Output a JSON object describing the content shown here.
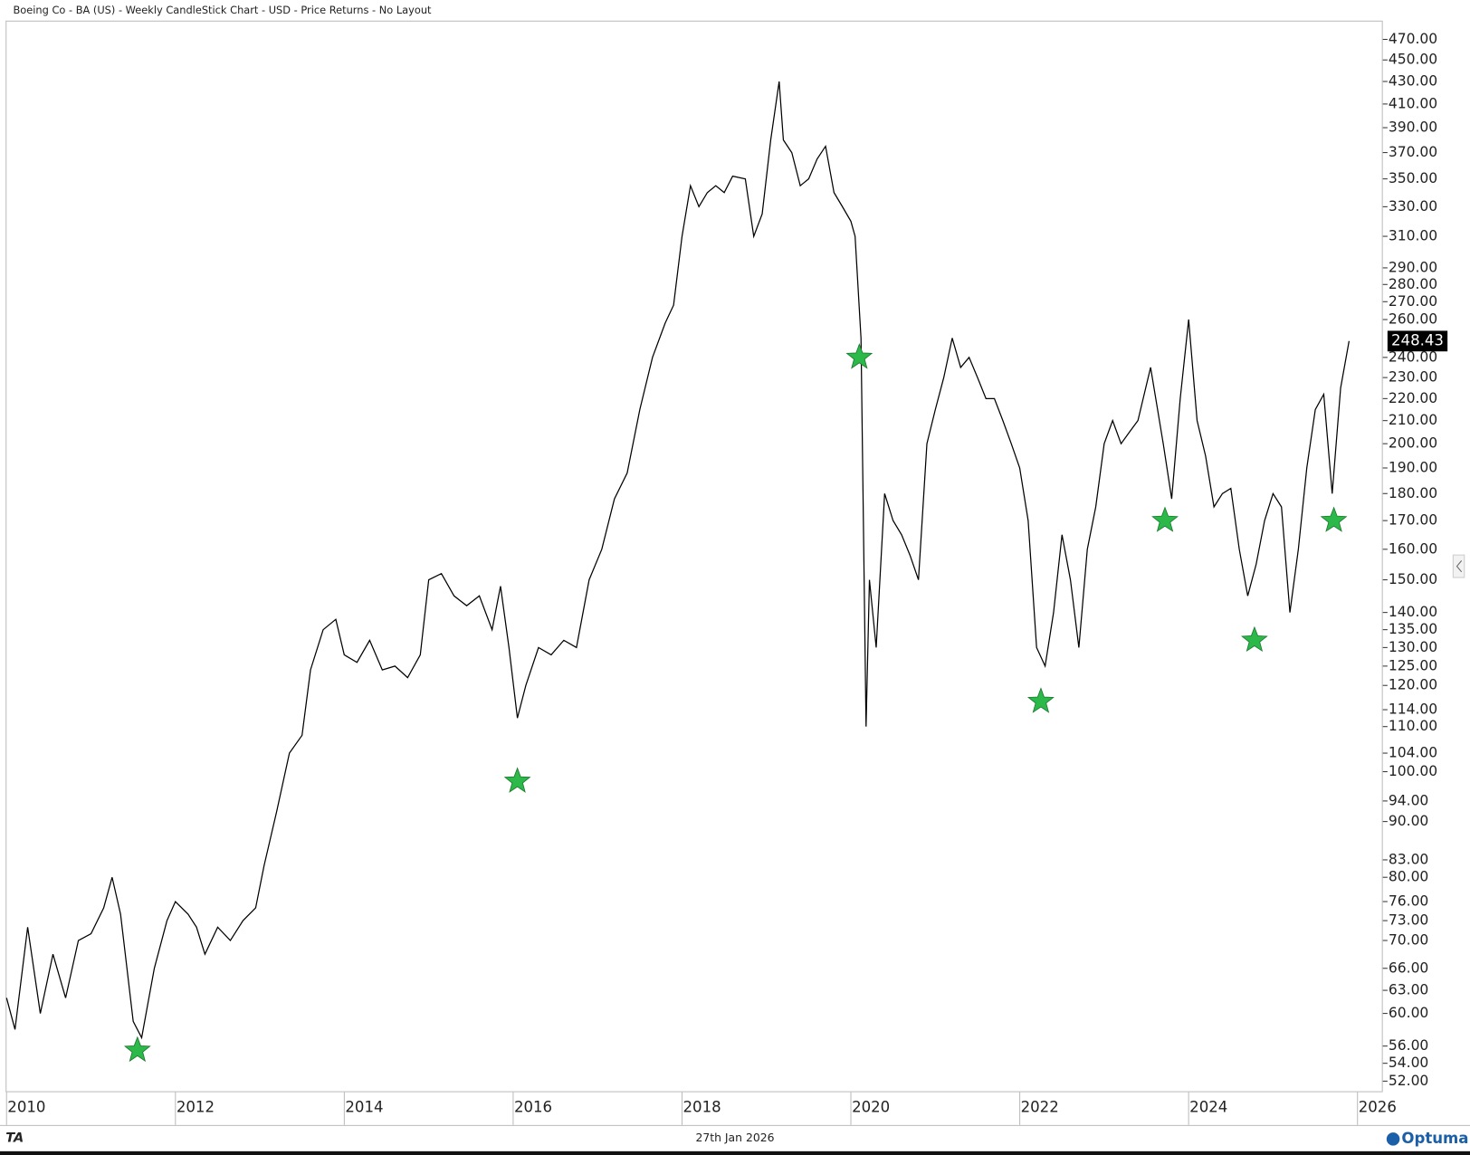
{
  "chart_data": {
    "type": "line",
    "title": "Boeing Co - BA (US) - Weekly CandleStick Chart - USD - Price Returns - No Layout",
    "date_label": "27th Jan 2026",
    "brand": "Optuma",
    "logo": "TA",
    "log_scale": true,
    "color": "#000000",
    "x": [
      2010.0,
      2010.1,
      2010.25,
      2010.4,
      2010.55,
      2010.7,
      2010.85,
      2011.0,
      2011.15,
      2011.25,
      2011.35,
      2011.5,
      2011.6,
      2011.75,
      2011.9,
      2012.0,
      2012.15,
      2012.25,
      2012.35,
      2012.5,
      2012.65,
      2012.8,
      2012.95,
      2013.05,
      2013.2,
      2013.35,
      2013.5,
      2013.6,
      2013.75,
      2013.9,
      2014.0,
      2014.15,
      2014.3,
      2014.45,
      2014.6,
      2014.75,
      2014.9,
      2015.0,
      2015.15,
      2015.3,
      2015.45,
      2015.6,
      2015.75,
      2015.85,
      2015.95,
      2016.05,
      2016.15,
      2016.3,
      2016.45,
      2016.6,
      2016.75,
      2016.9,
      2017.05,
      2017.2,
      2017.35,
      2017.5,
      2017.65,
      2017.8,
      2017.9,
      2018.0,
      2018.1,
      2018.2,
      2018.3,
      2018.4,
      2018.5,
      2018.6,
      2018.75,
      2018.85,
      2018.95,
      2019.05,
      2019.15,
      2019.2,
      2019.3,
      2019.4,
      2019.5,
      2019.6,
      2019.7,
      2019.8,
      2019.9,
      2020.0,
      2020.05,
      2020.12,
      2020.18,
      2020.22,
      2020.3,
      2020.4,
      2020.5,
      2020.6,
      2020.7,
      2020.8,
      2020.9,
      2021.0,
      2021.1,
      2021.2,
      2021.3,
      2021.4,
      2021.5,
      2021.6,
      2021.7,
      2021.8,
      2021.9,
      2022.0,
      2022.1,
      2022.2,
      2022.3,
      2022.4,
      2022.5,
      2022.6,
      2022.7,
      2022.8,
      2022.9,
      2023.0,
      2023.1,
      2023.2,
      2023.3,
      2023.4,
      2023.55,
      2023.7,
      2023.8,
      2023.9,
      2024.0,
      2024.1,
      2024.2,
      2024.3,
      2024.4,
      2024.5,
      2024.6,
      2024.7,
      2024.8,
      2024.9,
      2025.0,
      2025.1,
      2025.2,
      2025.3,
      2025.4,
      2025.5,
      2025.6,
      2025.7,
      2025.8,
      2025.9
    ],
    "values": [
      62,
      58,
      72,
      60,
      68,
      62,
      70,
      71,
      75,
      80,
      74,
      59,
      57,
      66,
      73,
      76,
      74,
      72,
      68,
      72,
      70,
      73,
      75,
      82,
      92,
      104,
      108,
      124,
      135,
      138,
      128,
      126,
      132,
      124,
      125,
      122,
      128,
      150,
      152,
      145,
      142,
      145,
      135,
      148,
      130,
      112,
      120,
      130,
      128,
      132,
      130,
      150,
      160,
      178,
      188,
      215,
      240,
      258,
      268,
      310,
      345,
      330,
      340,
      345,
      340,
      352,
      350,
      310,
      325,
      380,
      430,
      380,
      370,
      345,
      350,
      365,
      375,
      340,
      330,
      320,
      310,
      250,
      110,
      150,
      130,
      180,
      170,
      165,
      158,
      150,
      200,
      215,
      230,
      250,
      235,
      240,
      230,
      220,
      220,
      210,
      200,
      190,
      170,
      130,
      125,
      140,
      165,
      150,
      130,
      160,
      175,
      200,
      210,
      200,
      205,
      210,
      235,
      200,
      178,
      220,
      260,
      210,
      195,
      175,
      180,
      182,
      160,
      145,
      155,
      170,
      180,
      175,
      140,
      160,
      190,
      215,
      222,
      180,
      225,
      248.43
    ],
    "markers": {
      "color": "#2db84a",
      "x": [
        2011.55,
        2016.05,
        2020.1,
        2022.25,
        2023.72,
        2024.78,
        2025.72
      ],
      "values": [
        55.5,
        98,
        240,
        116,
        170,
        132,
        170
      ]
    },
    "xlim": [
      2010,
      2026.3
    ],
    "xticks": [
      2010,
      2012,
      2014,
      2016,
      2018,
      2020,
      2022,
      2024,
      2026
    ],
    "ylim": [
      50.8,
      489
    ],
    "yticks": [
      {
        "value": 470,
        "label": "470.00"
      },
      {
        "value": 450,
        "label": "450.00"
      },
      {
        "value": 430,
        "label": "430.00"
      },
      {
        "value": 410,
        "label": "410.00"
      },
      {
        "value": 390,
        "label": "390.00"
      },
      {
        "value": 370,
        "label": "370.00"
      },
      {
        "value": 350,
        "label": "350.00"
      },
      {
        "value": 330,
        "label": "330.00"
      },
      {
        "value": 310,
        "label": "310.00"
      },
      {
        "value": 290,
        "label": "290.00"
      },
      {
        "value": 280,
        "label": "280.00"
      },
      {
        "value": 270,
        "label": "270.00"
      },
      {
        "value": 260,
        "label": "260.00"
      },
      {
        "value": 240,
        "label": "240.00"
      },
      {
        "value": 230,
        "label": "230.00"
      },
      {
        "value": 220,
        "label": "220.00"
      },
      {
        "value": 210,
        "label": "210.00"
      },
      {
        "value": 200,
        "label": "200.00"
      },
      {
        "value": 190,
        "label": "190.00"
      },
      {
        "value": 180,
        "label": "180.00"
      },
      {
        "value": 170,
        "label": "170.00"
      },
      {
        "value": 160,
        "label": "160.00"
      },
      {
        "value": 150,
        "label": "150.00"
      },
      {
        "value": 140,
        "label": "140.00"
      },
      {
        "value": 135,
        "label": "135.00"
      },
      {
        "value": 130,
        "label": "130.00"
      },
      {
        "value": 125,
        "label": "125.00"
      },
      {
        "value": 120,
        "label": "120.00"
      },
      {
        "value": 114,
        "label": "114.00"
      },
      {
        "value": 110,
        "label": "110.00"
      },
      {
        "value": 104,
        "label": "104.00"
      },
      {
        "value": 100,
        "label": "100.00"
      },
      {
        "value": 94,
        "label": "94.00"
      },
      {
        "value": 90,
        "label": "90.00"
      },
      {
        "value": 83,
        "label": "83.00"
      },
      {
        "value": 80,
        "label": "80.00"
      },
      {
        "value": 76,
        "label": "76.00"
      },
      {
        "value": 73,
        "label": "73.00"
      },
      {
        "value": 70,
        "label": "70.00"
      },
      {
        "value": 66,
        "label": "66.00"
      },
      {
        "value": 63,
        "label": "63.00"
      },
      {
        "value": 60,
        "label": "60.00"
      },
      {
        "value": 56,
        "label": "56.00"
      },
      {
        "value": 54,
        "label": "54.00"
      },
      {
        "value": 52,
        "label": "52.00"
      }
    ]
  }
}
